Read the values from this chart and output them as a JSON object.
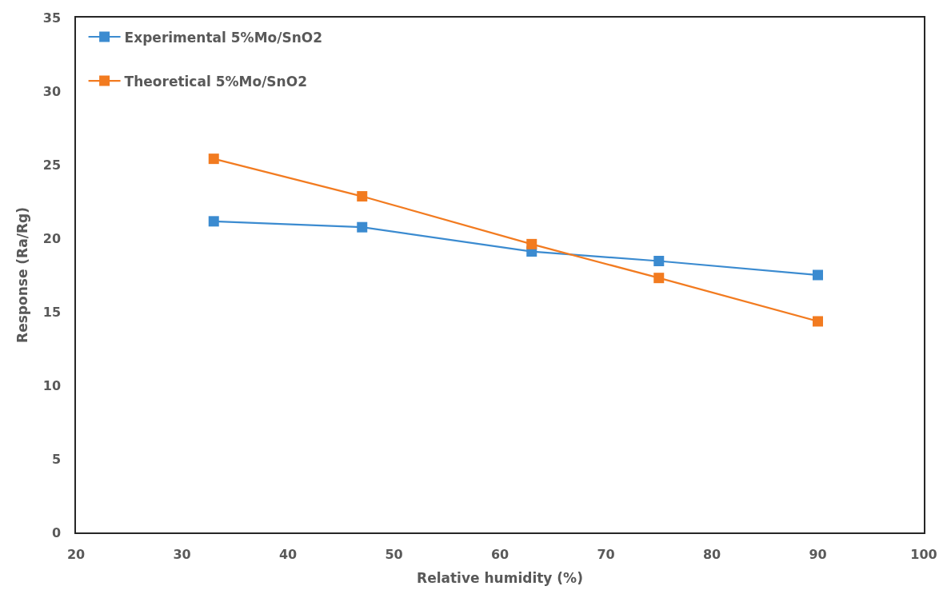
{
  "chart_data": {
    "type": "line",
    "xlabel": "Relative humidity (%)",
    "ylabel": "Response (Ra/Rg)",
    "x": [
      33,
      47,
      63,
      75,
      90
    ],
    "series": [
      {
        "name": "Experimental 5%Mo/SnO2",
        "color": "#3b8bd0",
        "values": [
          21.15,
          20.75,
          19.1,
          18.45,
          17.5
        ]
      },
      {
        "name": "Theoretical 5%Mo/SnO2",
        "color": "#f27b20",
        "values": [
          25.4,
          22.85,
          19.6,
          17.3,
          14.35
        ]
      }
    ],
    "xlim": [
      20,
      100
    ],
    "xticks": [
      20,
      30,
      40,
      50,
      60,
      70,
      80,
      90,
      100
    ],
    "ylim": [
      0,
      35
    ],
    "yticks": [
      0,
      5,
      10,
      15,
      20,
      25,
      30,
      35
    ],
    "legend": "top left",
    "marker": "square",
    "line_style": "solid"
  }
}
